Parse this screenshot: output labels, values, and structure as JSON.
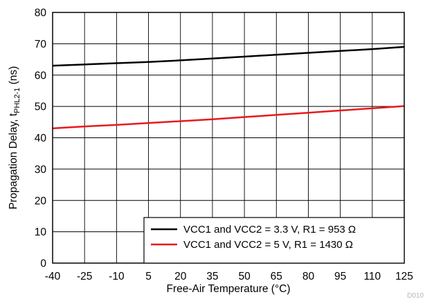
{
  "chart_data": {
    "type": "line",
    "xlabel": "Free-Air Temperature (°C)",
    "ylabel": {
      "prefix": "Propagation Delay, t",
      "subscript": "PHL2-1",
      "suffix": " (ns)"
    },
    "xlim": [
      -40,
      125
    ],
    "ylim": [
      0,
      80
    ],
    "x_ticks": [
      -40,
      -25,
      -10,
      5,
      20,
      35,
      50,
      65,
      80,
      95,
      110,
      125
    ],
    "y_ticks": [
      0,
      10,
      20,
      30,
      40,
      50,
      60,
      70,
      80
    ],
    "grid": true,
    "legend_position": "bottom-right",
    "figure_id": "D010",
    "series": [
      {
        "name": "VCC1 and VCC2 = 3.3 V, R1 = 953 Ω",
        "color": "#000000",
        "x": [
          -40,
          -25,
          -10,
          5,
          20,
          35,
          50,
          65,
          80,
          95,
          110,
          125
        ],
        "y": [
          63.0,
          63.4,
          63.8,
          64.2,
          64.7,
          65.3,
          65.9,
          66.5,
          67.1,
          67.7,
          68.3,
          69.0
        ]
      },
      {
        "name": "VCC1 and VCC2 = 5 V, R1 = 1430 Ω",
        "color": "#e8191c",
        "x": [
          -40,
          -25,
          -10,
          5,
          20,
          35,
          50,
          65,
          80,
          95,
          110,
          125
        ],
        "y": [
          43.0,
          43.6,
          44.1,
          44.7,
          45.3,
          45.9,
          46.6,
          47.3,
          48.0,
          48.7,
          49.4,
          50.1
        ]
      }
    ]
  }
}
